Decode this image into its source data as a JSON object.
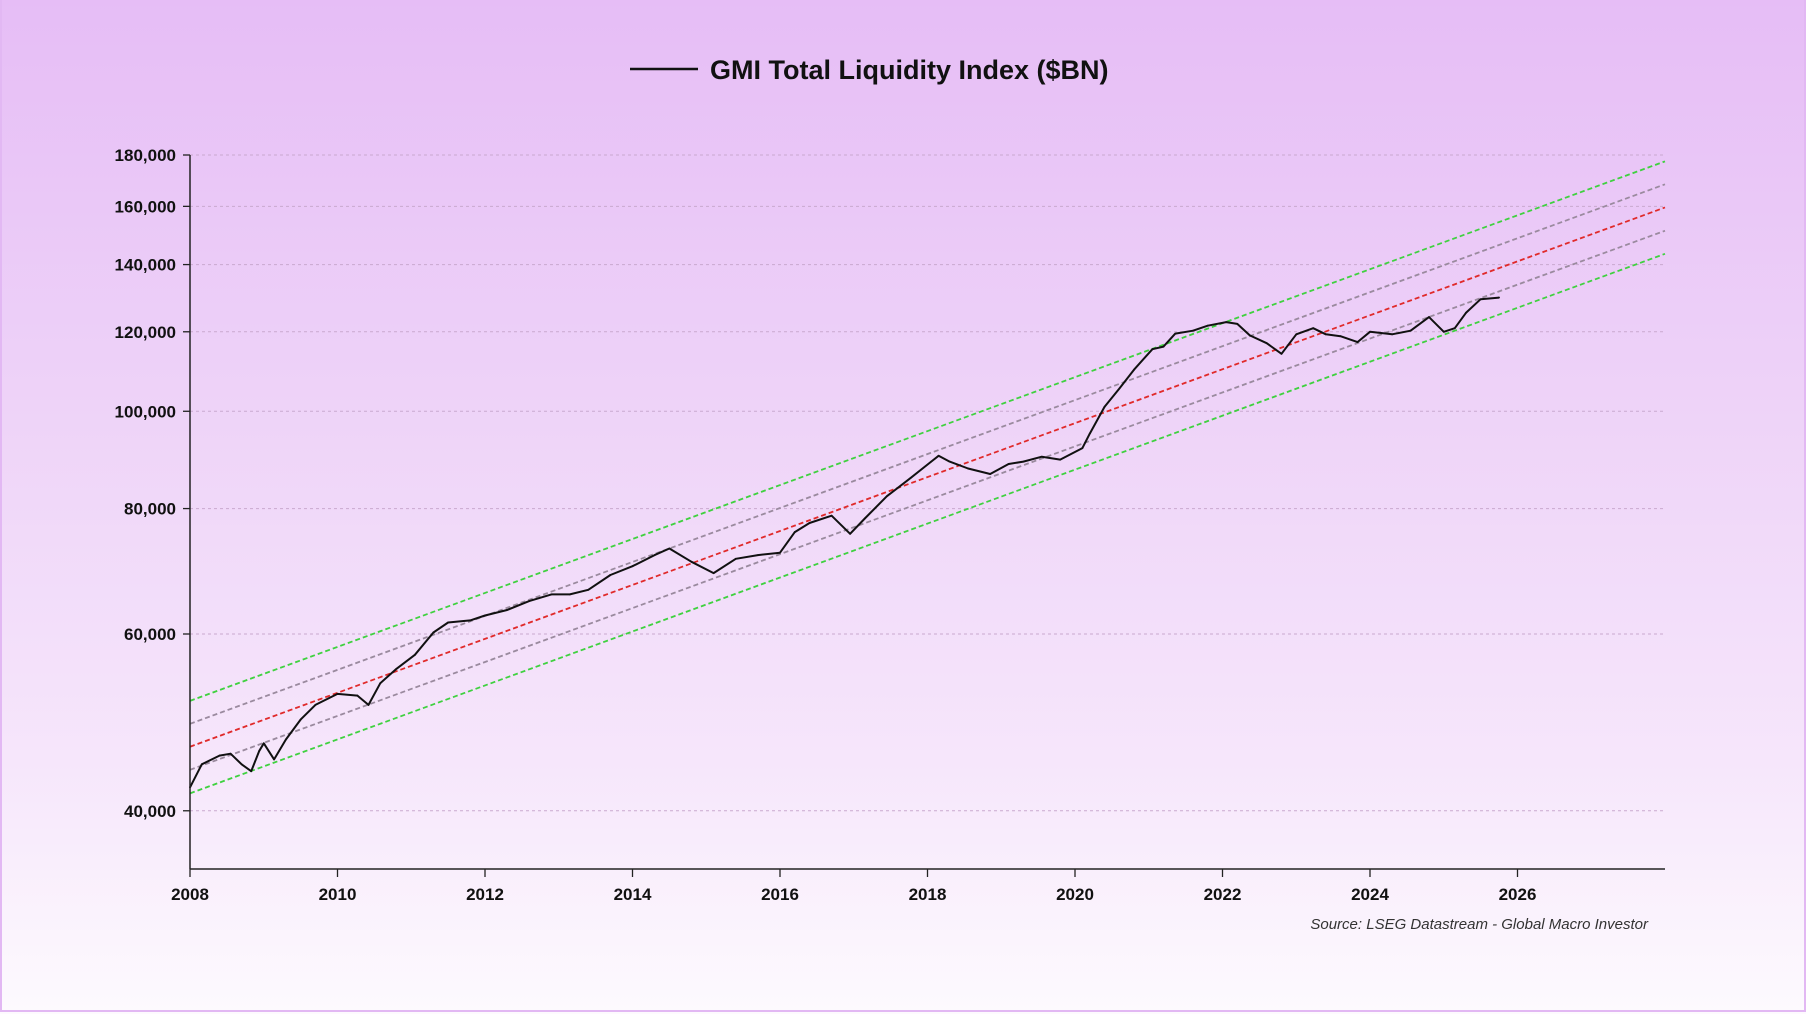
{
  "chart_data": {
    "type": "line",
    "title": "GMI Total Liquidity Index ($BN)",
    "legend": {
      "placement": "top-center",
      "entries": [
        "GMI Total Liquidity Index ($BN)"
      ]
    },
    "source": "Source: LSEG Datastream - Global Macro Investor",
    "xlim": [
      2008,
      2028
    ],
    "ylim": [
      35000,
      180000
    ],
    "y_scale": "log",
    "grid": {
      "horizontal": true,
      "style": "dotted"
    },
    "x_ticks": [
      2008,
      2010,
      2012,
      2014,
      2016,
      2018,
      2020,
      2022,
      2024,
      2026
    ],
    "x_tick_labels": [
      "2008",
      "2010",
      "2012",
      "2014",
      "2016",
      "2018",
      "2020",
      "2022",
      "2024",
      "2026"
    ],
    "y_ticks": [
      40000,
      60000,
      80000,
      100000,
      120000,
      140000,
      160000,
      180000
    ],
    "y_tick_labels": [
      "40,000",
      "60,000",
      "80,000",
      "100,000",
      "120,000",
      "140,000",
      "160,000",
      "180,000"
    ],
    "series": [
      {
        "name": "GMI Total Liquidity Index ($BN)",
        "color": "#111111",
        "x": [
          2008.0,
          2008.16,
          2008.4,
          2008.55,
          2008.7,
          2008.83,
          2008.94,
          2009.0,
          2009.14,
          2009.3,
          2009.5,
          2009.7,
          2010.0,
          2010.27,
          2010.42,
          2010.58,
          2010.8,
          2011.05,
          2011.3,
          2011.5,
          2011.8,
          2012.0,
          2012.3,
          2012.6,
          2012.9,
          2013.15,
          2013.4,
          2013.7,
          2014.0,
          2014.3,
          2014.5,
          2014.8,
          2015.1,
          2015.4,
          2015.7,
          2016.0,
          2016.2,
          2016.4,
          2016.7,
          2016.95,
          2017.15,
          2017.45,
          2017.77,
          2018.05,
          2018.15,
          2018.3,
          2018.55,
          2018.85,
          2019.1,
          2019.3,
          2019.55,
          2019.8,
          2020.1,
          2020.2,
          2020.4,
          2020.6,
          2020.8,
          2021.05,
          2021.2,
          2021.36,
          2021.6,
          2021.8,
          2022.05,
          2022.2,
          2022.37,
          2022.6,
          2022.8,
          2023.0,
          2023.23,
          2023.4,
          2023.6,
          2023.83,
          2024.0,
          2024.3,
          2024.55,
          2024.8,
          2025.0,
          2025.15,
          2025.3,
          2025.5,
          2025.75
        ],
        "y": [
          42200,
          44500,
          45400,
          45600,
          44500,
          43800,
          45900,
          46700,
          45000,
          47100,
          49300,
          51000,
          52300,
          52100,
          51000,
          53600,
          55400,
          57200,
          60200,
          61600,
          61900,
          62600,
          63400,
          64700,
          65700,
          65700,
          66400,
          68700,
          70100,
          71900,
          73000,
          70800,
          69000,
          71300,
          71900,
          72300,
          75800,
          77400,
          78700,
          75500,
          78200,
          82300,
          85800,
          89100,
          90300,
          89100,
          87700,
          86600,
          88600,
          89100,
          90100,
          89500,
          91900,
          95000,
          101000,
          105300,
          110000,
          115300,
          116000,
          119500,
          120300,
          121700,
          122700,
          122200,
          119000,
          116900,
          114100,
          119300,
          121000,
          119300,
          118800,
          117200,
          120000,
          119300,
          120300,
          124100,
          120000,
          121000,
          125300,
          129300,
          129800
        ]
      }
    ],
    "trend_lines": [
      {
        "role": "upper-band-outer",
        "color": "#3fd13f",
        "x": [
          2008,
          2028
        ],
        "y": [
          51470,
          177400
        ]
      },
      {
        "role": "upper-band-inner",
        "color": "#9a8a9e",
        "x": [
          2008,
          2028
        ],
        "y": [
          48830,
          168300
        ]
      },
      {
        "role": "trend",
        "color": "#e02a2a",
        "x": [
          2008,
          2028
        ],
        "y": [
          46330,
          159600
        ]
      },
      {
        "role": "lower-band-inner",
        "color": "#9a8a9e",
        "x": [
          2008,
          2028
        ],
        "y": [
          43940,
          151300
        ]
      },
      {
        "role": "lower-band-outer",
        "color": "#3fd13f",
        "x": [
          2008,
          2028
        ],
        "y": [
          41630,
          143500
        ]
      }
    ]
  }
}
